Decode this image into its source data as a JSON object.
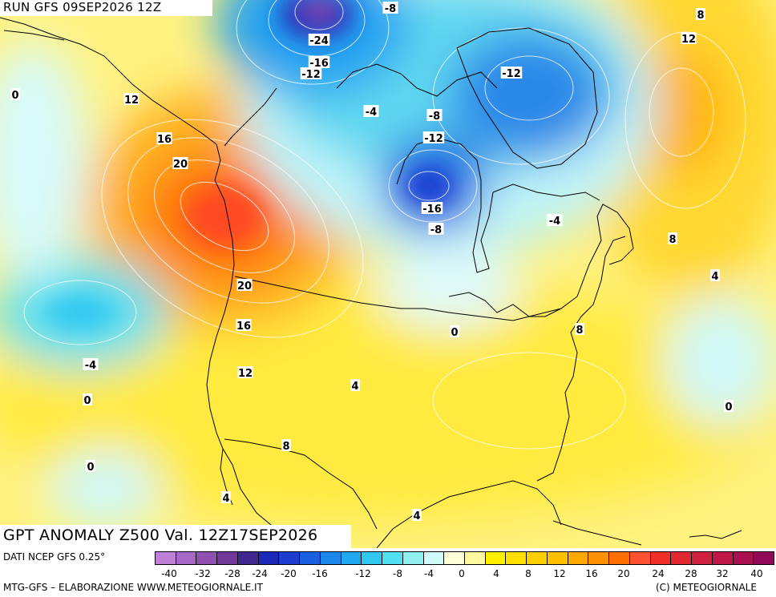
{
  "header": {
    "run_label": "RUN GFS 09SEP2026 12Z"
  },
  "map": {
    "title": "GPT ANOMALY Z500 Val. 12Z17SEP2026",
    "contour_labels": [
      "-8",
      "-24",
      "-16",
      "-12",
      "-12",
      "-4",
      "-8",
      "-12",
      "-16",
      "-8",
      "-4",
      "8",
      "12",
      "0",
      "12",
      "16",
      "20",
      "20",
      "16",
      "12",
      "-4",
      "0",
      "0",
      "4",
      "0",
      "8",
      "8",
      "4",
      "0",
      "8",
      "4",
      "4"
    ]
  },
  "footer": {
    "source": "DATI NCEP GFS 0.25°",
    "credit_left": "MTG-GFS – ELABORAZIONE WWW.METEOGIORNALE.IT",
    "credit_right": "(C) METEOGIORNALE"
  },
  "legend": {
    "ticks": [
      "-40",
      "-32",
      "-28",
      "-24",
      "-20",
      "-16",
      "-12",
      "-8",
      "-4",
      "0",
      "4",
      "8",
      "12",
      "16",
      "20",
      "24",
      "28",
      "32",
      "40"
    ],
    "colors": [
      "#c080d8",
      "#a868c8",
      "#9050b0",
      "#703898",
      "#402890",
      "#1c28b8",
      "#1c3ed0",
      "#1860e0",
      "#1a88ea",
      "#20a8f0",
      "#30c8f0",
      "#50e0f0",
      "#90f0f0",
      "#d0fafa",
      "#ffffd8",
      "#fff8a0",
      "#fff000",
      "#ffe000",
      "#ffd000",
      "#ffc000",
      "#ffa800",
      "#ff9000",
      "#ff7000",
      "#ff5030",
      "#f03028",
      "#e02830",
      "#d02040",
      "#c01848",
      "#a81050",
      "#900858"
    ]
  }
}
